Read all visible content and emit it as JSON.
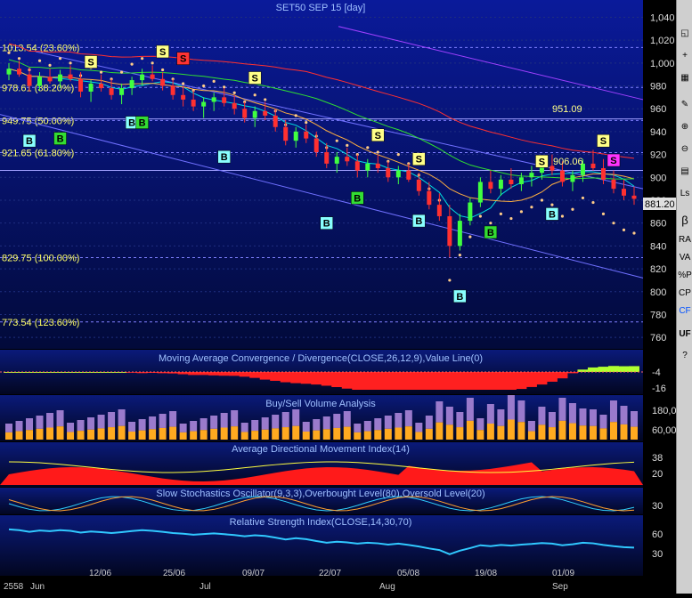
{
  "title": "SET50 SEP 15   [day]",
  "colors": {
    "bg_top": "#000080",
    "bg_bottom": "#000033",
    "grid": "#2a3a7a",
    "text": "#cfe0ff"
  },
  "price_axis": [
    "1,040",
    "1,020",
    "1,000",
    "980",
    "960",
    "940",
    "920",
    "900",
    "880",
    "860",
    "840",
    "820",
    "800",
    "780",
    "760"
  ],
  "last_price": "881.20",
  "fib_levels": [
    {
      "label": "1013.54 (23.60%)",
      "value": 1013.54
    },
    {
      "label": "978.61 (38.20%)",
      "value": 978.61
    },
    {
      "label": "949.75 (50.00%)",
      "value": 949.75
    },
    {
      "label": "921.65 (61.80%)",
      "value": 921.65
    },
    {
      "label": "829.75 (100.00%)",
      "value": 829.75
    },
    {
      "label": "773.54 (123.60%)",
      "value": 773.54
    }
  ],
  "annotations": [
    {
      "label": "951.09",
      "value": 951.09
    },
    {
      "label": "906.06",
      "value": 906.06
    }
  ],
  "panels": {
    "macd": {
      "title": "Moving Average Convergence / Divergence(CLOSE,26,12,9),Value Line(0)",
      "ticks": [
        "-4",
        "-16"
      ]
    },
    "volume": {
      "title": "Buy/Sell Volume Analysis",
      "ticks": [
        "180,0",
        "60,00"
      ]
    },
    "adx": {
      "title": "Average Directional Movement Index(14)",
      "ticks": [
        "38",
        "20"
      ]
    },
    "stoch": {
      "title": "Slow Stochastics Oscillator(9,3,3),Overbought Level(80),Oversold Level(20)",
      "ticks": [
        "30"
      ]
    },
    "rsi": {
      "title": "Relative Strength Index(CLOSE,14,30,70)",
      "ticks": [
        "60",
        "30"
      ]
    }
  },
  "x_axis": {
    "dates": [
      "12/06",
      "25/06",
      "09/07",
      "22/07",
      "05/08",
      "19/08",
      "01/09"
    ],
    "months": [
      "2558",
      "Jun",
      "Jul",
      "Aug",
      "Sep"
    ]
  },
  "toolbar_labels": [
    "β",
    "RA",
    "VA",
    "%P",
    "CP",
    "CF",
    "UF"
  ],
  "chart_data": {
    "type": "candlestick",
    "title": "SET50 SEP 15   [day]",
    "ylim": [
      750,
      1045
    ],
    "candles": [
      [
        990,
        1000,
        985,
        995
      ],
      [
        995,
        1002,
        988,
        990
      ],
      [
        990,
        996,
        975,
        980
      ],
      [
        980,
        992,
        976,
        988
      ],
      [
        988,
        995,
        982,
        984
      ],
      [
        984,
        994,
        978,
        990
      ],
      [
        990,
        998,
        984,
        986
      ],
      [
        986,
        992,
        970,
        975
      ],
      [
        975,
        985,
        966,
        982
      ],
      [
        982,
        990,
        975,
        978
      ],
      [
        978,
        986,
        968,
        972
      ],
      [
        972,
        982,
        964,
        978
      ],
      [
        978,
        988,
        972,
        985
      ],
      [
        985,
        995,
        980,
        990
      ],
      [
        990,
        998,
        984,
        986
      ],
      [
        986,
        992,
        976,
        980
      ],
      [
        980,
        986,
        968,
        972
      ],
      [
        972,
        980,
        962,
        968
      ],
      [
        968,
        976,
        958,
        962
      ],
      [
        962,
        970,
        952,
        966
      ],
      [
        966,
        974,
        958,
        970
      ],
      [
        970,
        978,
        962,
        965
      ],
      [
        965,
        972,
        955,
        960
      ],
      [
        960,
        966,
        948,
        952
      ],
      [
        952,
        962,
        944,
        958
      ],
      [
        958,
        966,
        950,
        954
      ],
      [
        954,
        960,
        940,
        944
      ],
      [
        944,
        950,
        928,
        932
      ],
      [
        932,
        944,
        926,
        940
      ],
      [
        940,
        946,
        930,
        934
      ],
      [
        934,
        940,
        918,
        922
      ],
      [
        922,
        930,
        908,
        912
      ],
      [
        912,
        922,
        904,
        918
      ],
      [
        918,
        926,
        910,
        914
      ],
      [
        914,
        920,
        900,
        906
      ],
      [
        906,
        916,
        900,
        912
      ],
      [
        912,
        920,
        904,
        908
      ],
      [
        908,
        914,
        896,
        900
      ],
      [
        900,
        910,
        894,
        906
      ],
      [
        906,
        912,
        896,
        898
      ],
      [
        898,
        904,
        884,
        888
      ],
      [
        888,
        896,
        872,
        876
      ],
      [
        876,
        886,
        862,
        866
      ],
      [
        866,
        876,
        830,
        840
      ],
      [
        840,
        868,
        836,
        862
      ],
      [
        862,
        882,
        858,
        878
      ],
      [
        878,
        900,
        874,
        896
      ],
      [
        896,
        906,
        886,
        890
      ],
      [
        890,
        902,
        884,
        898
      ],
      [
        898,
        908,
        890,
        894
      ],
      [
        894,
        904,
        888,
        900
      ],
      [
        900,
        910,
        892,
        904
      ],
      [
        904,
        916,
        898,
        910
      ],
      [
        910,
        920,
        902,
        906
      ],
      [
        906,
        914,
        892,
        896
      ],
      [
        896,
        906,
        888,
        902
      ],
      [
        902,
        916,
        896,
        912
      ],
      [
        912,
        924,
        906,
        908
      ],
      [
        908,
        916,
        894,
        898
      ],
      [
        898,
        906,
        886,
        890
      ],
      [
        890,
        898,
        880,
        884
      ],
      [
        884,
        892,
        876,
        881.2
      ]
    ],
    "signals": [
      {
        "i": 8,
        "type": "S",
        "price": 1001,
        "color": "#ffff88"
      },
      {
        "i": 15,
        "type": "S",
        "price": 1010,
        "color": "#ffff88"
      },
      {
        "i": 17,
        "type": "S",
        "price": 1004,
        "color": "#ff3333"
      },
      {
        "i": 24,
        "type": "S",
        "price": 987,
        "color": "#ffff88"
      },
      {
        "i": 36,
        "type": "S",
        "price": 937,
        "color": "#ffff88"
      },
      {
        "i": 40,
        "type": "S",
        "price": 916,
        "color": "#ffff88"
      },
      {
        "i": 52,
        "type": "S",
        "price": 914,
        "color": "#ffff88"
      },
      {
        "i": 58,
        "type": "S",
        "price": 932,
        "color": "#ffff88"
      },
      {
        "i": 59,
        "type": "S",
        "price": 915,
        "color": "#ff33ff"
      },
      {
        "i": 2,
        "type": "B",
        "price": 932,
        "color": "#88ffff"
      },
      {
        "i": 5,
        "type": "B",
        "price": 934,
        "color": "#33dd33"
      },
      {
        "i": 12,
        "type": "B",
        "price": 948,
        "color": "#88ffff"
      },
      {
        "i": 13,
        "type": "B",
        "price": 948,
        "color": "#33dd33"
      },
      {
        "i": 21,
        "type": "B",
        "price": 918,
        "color": "#88ffff"
      },
      {
        "i": 31,
        "type": "B",
        "price": 860,
        "color": "#88ffff"
      },
      {
        "i": 34,
        "type": "B",
        "price": 882,
        "color": "#33dd33"
      },
      {
        "i": 40,
        "type": "B",
        "price": 862,
        "color": "#88ffff"
      },
      {
        "i": 44,
        "type": "B",
        "price": 796,
        "color": "#88ffff"
      },
      {
        "i": 47,
        "type": "B",
        "price": 852,
        "color": "#33dd33"
      },
      {
        "i": 53,
        "type": "B",
        "price": 868,
        "color": "#88ffff"
      }
    ]
  }
}
